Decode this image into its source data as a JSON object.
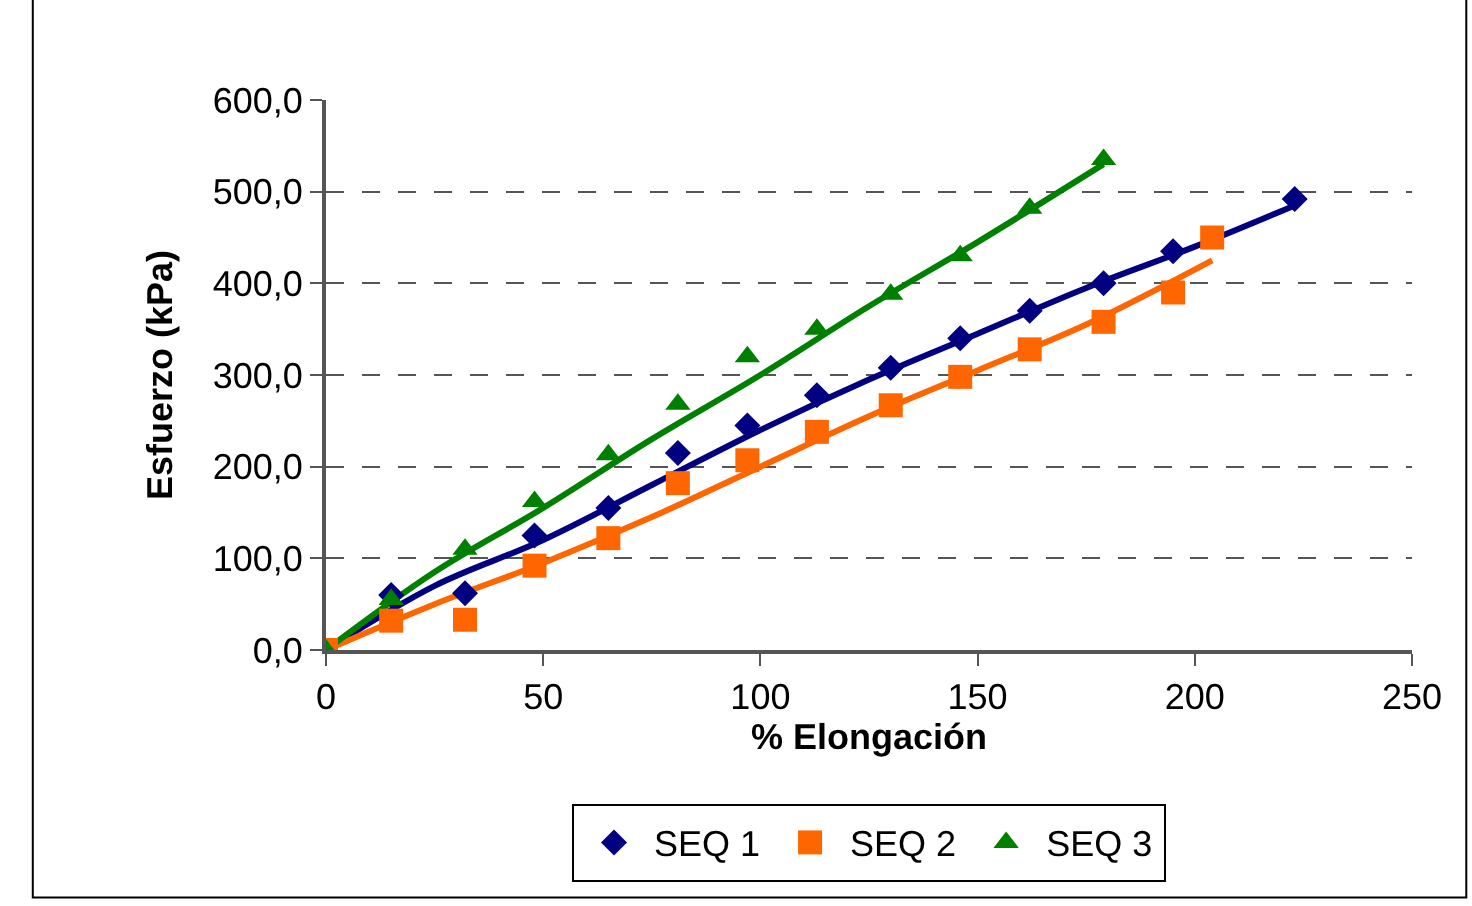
{
  "chart_data": {
    "type": "scatter",
    "xlabel": "% Elongación",
    "ylabel": "Esfuerzo (kPa)",
    "xlim": [
      0,
      250
    ],
    "xticks": [
      0,
      50,
      100,
      150,
      200,
      250
    ],
    "ylim": [
      0,
      600
    ],
    "yticks": [
      {
        "value": 0,
        "label": "0,0"
      },
      {
        "value": 100,
        "label": "100,0"
      },
      {
        "value": 200,
        "label": "200,0"
      },
      {
        "value": 300,
        "label": "300,0"
      },
      {
        "value": 400,
        "label": "400,0"
      },
      {
        "value": 500,
        "label": "500,0"
      },
      {
        "value": 600,
        "label": "600,0"
      }
    ],
    "grid": "y",
    "legend": "bottom",
    "series": [
      {
        "name": "SEQ 1",
        "marker": "diamond",
        "color": "#000080",
        "x": [
          15,
          32,
          48,
          65,
          81,
          97,
          113,
          130,
          146,
          162,
          179,
          195,
          223
        ],
        "values": [
          60,
          62,
          125,
          155,
          215,
          245,
          278,
          308,
          340,
          370,
          400,
          435,
          492
        ]
      },
      {
        "name": "SEQ 2",
        "marker": "square",
        "color": "#ff6600",
        "x": [
          0,
          15,
          32,
          48,
          65,
          81,
          97,
          113,
          130,
          146,
          162,
          179,
          195,
          204
        ],
        "values": [
          0,
          32,
          33,
          92,
          122,
          182,
          207,
          238,
          267,
          298,
          328,
          358,
          390,
          450
        ]
      },
      {
        "name": "SEQ 3",
        "marker": "triangle",
        "color": "#008000",
        "x": [
          0,
          15,
          32,
          48,
          65,
          81,
          97,
          113,
          130,
          146,
          162,
          179
        ],
        "values": [
          0,
          55,
          110,
          162,
          213,
          268,
          320,
          350,
          388,
          430,
          482,
          535
        ]
      },
      {
        "type": "line",
        "marker": "none",
        "color": "#000080",
        "x": [
          0,
          25,
          50,
          75,
          100,
          125,
          150,
          175,
          200,
          223
        ],
        "values": [
          0,
          70,
          120,
          180,
          240,
          295,
          345,
          395,
          440,
          485
        ]
      },
      {
        "type": "line",
        "marker": "none",
        "color": "#ff6600",
        "x": [
          0,
          25,
          50,
          75,
          100,
          125,
          150,
          175,
          204
        ],
        "values": [
          0,
          50,
          95,
          145,
          200,
          255,
          305,
          355,
          425
        ]
      },
      {
        "type": "line",
        "marker": "none",
        "color": "#008000",
        "x": [
          0,
          25,
          50,
          75,
          100,
          125,
          150,
          179
        ],
        "values": [
          0,
          85,
          155,
          230,
          300,
          375,
          445,
          530
        ]
      }
    ]
  }
}
